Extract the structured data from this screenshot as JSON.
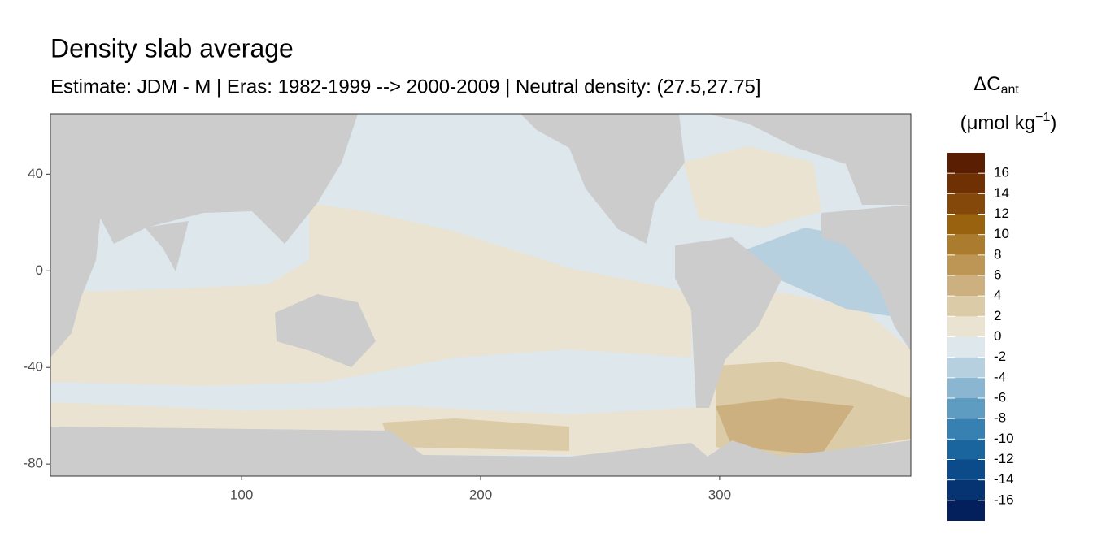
{
  "chart_data": {
    "type": "map",
    "title": "Density slab average",
    "subtitle": "Estimate: JDM - M | Eras: 1982-1999 --> 2000-2009 | Neutral density: (27.5,27.75]",
    "xlim": [
      20,
      380
    ],
    "ylim": [
      -85,
      65
    ],
    "xticks": [
      100,
      200,
      300
    ],
    "yticks": [
      -80,
      -40,
      0,
      40
    ],
    "legend": {
      "title": "ΔC",
      "title_subscript": "ant",
      "unit": "(μmol kg",
      "unit_superscript": "−1",
      "unit_close": ")",
      "lim": [
        -18,
        18
      ],
      "ticks": [
        -16,
        -14,
        -12,
        -10,
        -8,
        -6,
        -4,
        -2,
        0,
        2,
        4,
        6,
        8,
        10,
        12,
        14,
        16
      ],
      "colors": [
        "#03205c",
        "#063472",
        "#0c4b89",
        "#1b659f",
        "#3781b2",
        "#5e9cc2",
        "#8bb6d2",
        "#b6d0e0",
        "#dde7ec",
        "#ebe3d2",
        "#dccba7",
        "#cdb07f",
        "#bd9655",
        "#ac7c2e",
        "#98620f",
        "#84490a",
        "#6f3004",
        "#5a1e02"
      ]
    }
  }
}
